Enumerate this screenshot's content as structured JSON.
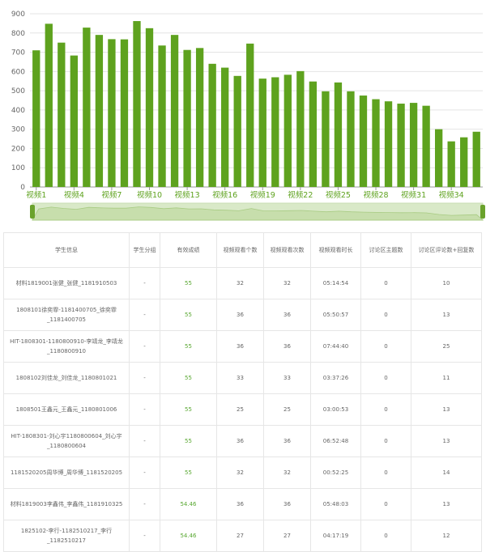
{
  "chart_data": {
    "type": "bar",
    "categories": [
      "视频1",
      "视频2",
      "视频3",
      "视频4",
      "视频5",
      "视频6",
      "视频7",
      "视频8",
      "视频9",
      "视频10",
      "视频11",
      "视频12",
      "视频13",
      "视频14",
      "视频15",
      "视频16",
      "视频17",
      "视频18",
      "视频19",
      "视频20",
      "视频21",
      "视频22",
      "视频23",
      "视频24",
      "视频25",
      "视频26",
      "视频27",
      "视频28",
      "视频29",
      "视频30",
      "视频31",
      "视频32",
      "视频33",
      "视频34",
      "视频35",
      "视频36"
    ],
    "x_tick_labels": [
      "视频1",
      "视频4",
      "视频7",
      "视频10",
      "视频13",
      "视频16",
      "视频19",
      "视频22",
      "视频25",
      "视频28",
      "视频31",
      "视频34"
    ],
    "values": [
      710,
      848,
      750,
      683,
      828,
      790,
      768,
      767,
      862,
      825,
      735,
      790,
      712,
      722,
      640,
      620,
      577,
      745,
      563,
      570,
      583,
      602,
      548,
      497,
      543,
      497,
      475,
      456,
      445,
      433,
      437,
      422,
      300,
      237,
      258,
      287
    ],
    "y_ticks": [
      0,
      100,
      200,
      300,
      400,
      500,
      600,
      700,
      800,
      900
    ],
    "ylim": [
      0,
      900
    ],
    "grid": true,
    "color": "#5ea21e",
    "slider_color": "#d9e9c8",
    "slider_handle_color": "#6aa22c"
  },
  "table": {
    "headers": [
      "学生信息",
      "学生分组",
      "有效成绩",
      "视频观看个数",
      "视频观看次数",
      "视频观看时长",
      "讨论区主题数",
      "讨论区评论数+回复数"
    ],
    "rows": [
      {
        "student": "材料1819001张健_张健_1181910503",
        "group": "-",
        "score": "55",
        "videos": "32",
        "views": "32",
        "duration": "05:14:54",
        "topics": "0",
        "comments": "10"
      },
      {
        "student": "1808101徐奕霏-1181400705_徐奕霏_1181400705",
        "group": "-",
        "score": "55",
        "videos": "36",
        "views": "36",
        "duration": "05:50:57",
        "topics": "0",
        "comments": "13"
      },
      {
        "student": "HIT-1808301-1180800910-李靖龙_李靖龙_1180800910",
        "group": "-",
        "score": "55",
        "videos": "36",
        "views": "36",
        "duration": "07:44:40",
        "topics": "0",
        "comments": "25"
      },
      {
        "student": "1808102刘佳龙_刘佳龙_1180801021",
        "group": "-",
        "score": "55",
        "videos": "33",
        "views": "33",
        "duration": "03:37:26",
        "topics": "0",
        "comments": "11"
      },
      {
        "student": "1808501王鑫元_王鑫元_1180801006",
        "group": "-",
        "score": "55",
        "videos": "25",
        "views": "25",
        "duration": "03:00:53",
        "topics": "0",
        "comments": "13"
      },
      {
        "student": "HIT-1808301-刘心宇1180800604_刘心宇_1180800604",
        "group": "-",
        "score": "55",
        "videos": "36",
        "views": "36",
        "duration": "06:52:48",
        "topics": "0",
        "comments": "13"
      },
      {
        "student": "1181520205周华博_周华博_1181520205",
        "group": "-",
        "score": "55",
        "videos": "32",
        "views": "32",
        "duration": "00:52:25",
        "topics": "0",
        "comments": "14"
      },
      {
        "student": "材料1819003李鑫伟_李鑫伟_1181910325",
        "group": "-",
        "score": "54.46",
        "videos": "36",
        "views": "36",
        "duration": "05:48:03",
        "topics": "0",
        "comments": "13"
      },
      {
        "student": "1825102-李行-1182510217_李行_1182510217",
        "group": "-",
        "score": "54.46",
        "videos": "27",
        "views": "27",
        "duration": "04:17:19",
        "topics": "0",
        "comments": "12"
      }
    ]
  }
}
